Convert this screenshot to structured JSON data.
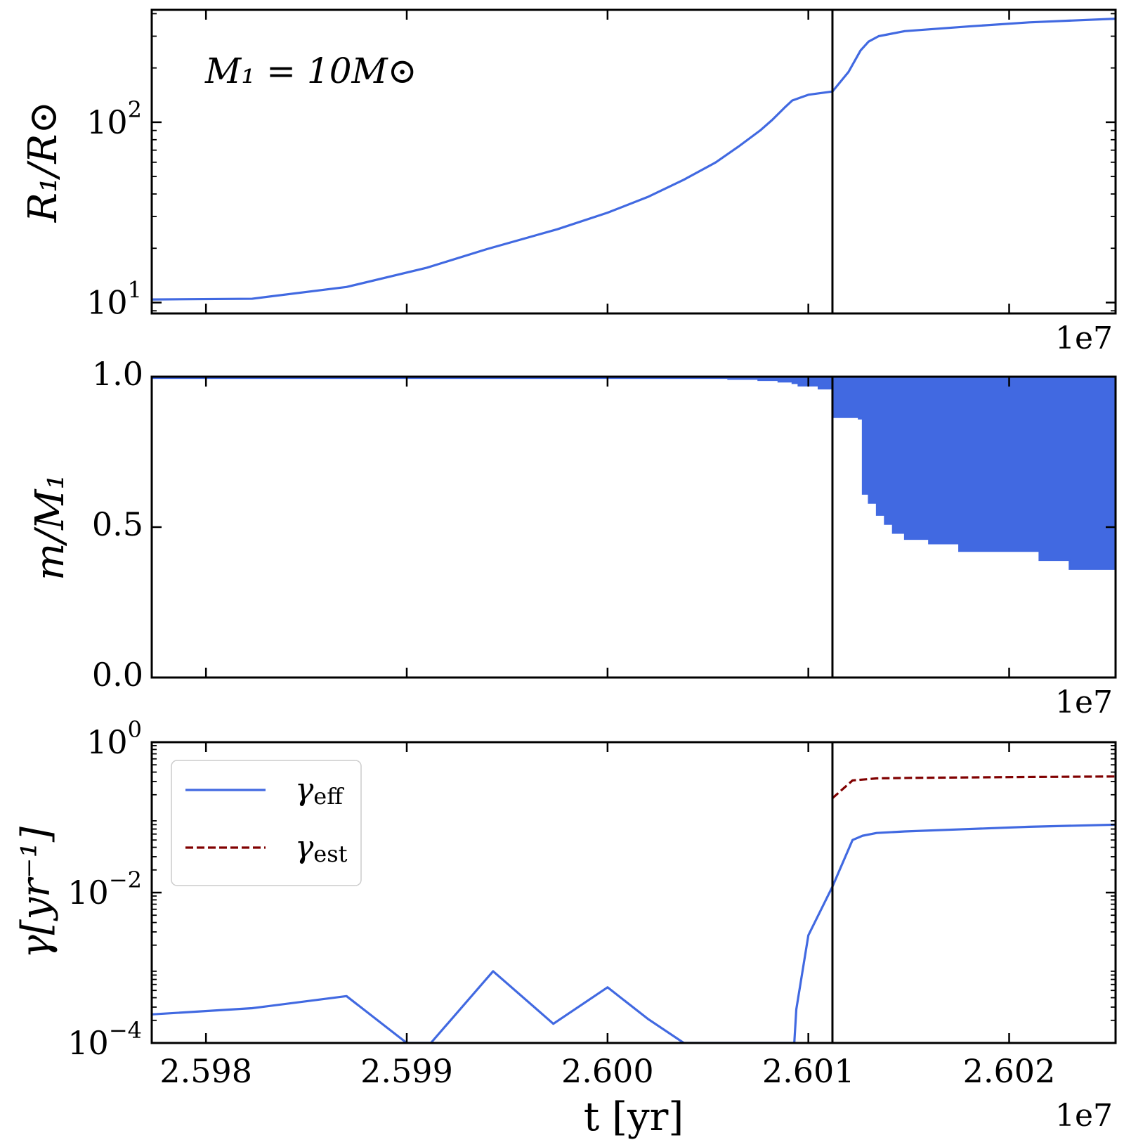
{
  "chart_data": [
    {
      "type": "line",
      "id": "radius",
      "ylabel": "R₁/R⊙",
      "yscale": "log",
      "ylim": [
        8.7,
        420
      ],
      "xlim": [
        25977300,
        26025300
      ],
      "annotation": "M₁ = 10M⊙",
      "offset_label": "1e7",
      "xticks": [
        25980000,
        25990000,
        26000000,
        26010000,
        26020000
      ],
      "yticks": [
        {
          "value": 10,
          "base": "10",
          "exp": "1"
        },
        {
          "value": 100,
          "base": "10",
          "exp": "2"
        }
      ],
      "vline": 26011200,
      "series": [
        {
          "color": "#4169e1",
          "style": "solid",
          "x": [
            25977300,
            25982300,
            25987000,
            25991000,
            25994000,
            25997500,
            26000000,
            26002000,
            26003800,
            26005400,
            26006500,
            26007600,
            26008200,
            26008800,
            26009200,
            26010000,
            26011200,
            26012000,
            26012600,
            26013000,
            26013500,
            26014800,
            26018000,
            26021000,
            26025300
          ],
          "y": [
            10.4,
            10.5,
            12.2,
            15.6,
            19.8,
            25.5,
            31.5,
            38.5,
            48,
            60,
            73,
            90,
            103,
            120,
            132,
            142,
            148,
            190,
            250,
            280,
            300,
            320,
            340,
            358,
            375
          ]
        }
      ]
    },
    {
      "type": "area",
      "id": "mass",
      "ylabel": "m/M₁",
      "ylim": [
        0.0,
        1.0
      ],
      "xlim": [
        25977300,
        26025300
      ],
      "offset_label": "1e7",
      "xticks": [
        25980000,
        25990000,
        26000000,
        26010000,
        26020000
      ],
      "yticks": [
        {
          "value": 0.0,
          "label": "0.0"
        },
        {
          "value": 0.5,
          "label": "0.5"
        },
        {
          "value": 1.0,
          "label": "1.0"
        }
      ],
      "vline": 26011200,
      "series": [
        {
          "color": "#4169e1",
          "fill_upper": 1.0,
          "x": [
            25977300,
            26006000,
            26007500,
            26008500,
            26009200,
            26009500,
            26010500,
            26011200,
            26011500,
            26012500,
            26012700,
            26013000,
            26013400,
            26013800,
            26014200,
            26014800,
            26016000,
            26017500,
            26019500,
            26021500,
            26022300,
            26023000,
            26025300
          ],
          "lower": [
            0.995,
            0.992,
            0.988,
            0.983,
            0.978,
            0.97,
            0.96,
            0.865,
            0.865,
            0.86,
            0.61,
            0.58,
            0.54,
            0.51,
            0.48,
            0.46,
            0.445,
            0.42,
            0.42,
            0.39,
            0.39,
            0.36,
            0.36
          ]
        }
      ]
    },
    {
      "type": "line",
      "id": "gamma",
      "ylabel": "γ[yr⁻¹]",
      "yscale": "log",
      "ylim": [
        0.0001,
        1.0
      ],
      "xlim": [
        25977300,
        26025300
      ],
      "xlabel": "t [yr]",
      "offset_label": "1e7",
      "xticks": [
        25980000,
        25990000,
        26000000,
        26010000,
        26020000
      ],
      "xticklabels": [
        "2.598",
        "2.599",
        "2.600",
        "2.601",
        "2.602"
      ],
      "yticks": [
        {
          "value": 0.0001,
          "base": "10",
          "exp": "−4"
        },
        {
          "value": 0.01,
          "base": "10",
          "exp": "−2"
        },
        {
          "value": 1.0,
          "base": "10",
          "exp": "0"
        }
      ],
      "vline": 26011200,
      "legend_position": "upper left",
      "series": [
        {
          "name": "γeff",
          "legend_base": "γ",
          "legend_sub": "eff",
          "color": "#4169e1",
          "style": "solid",
          "x": [
            25977300,
            25982300,
            25987000,
            25990000,
            25991200,
            25994300,
            25997300,
            26000000,
            26002000,
            26003800,
            26009300,
            26009400,
            26010000,
            26011200,
            26012200,
            26012700,
            26013400,
            26014800,
            26018000,
            26021000,
            26025300
          ],
          "y": [
            0.00024,
            0.00029,
            0.00042,
            0.0001,
            0.0001,
            0.0009,
            0.00018,
            0.00055,
            0.00021,
            0.0001,
            0.0001,
            0.00028,
            0.0027,
            0.012,
            0.05,
            0.057,
            0.062,
            0.065,
            0.07,
            0.075,
            0.08
          ]
        },
        {
          "name": "γest",
          "legend_base": "γ",
          "legend_sub": "est",
          "color": "#800000",
          "style": "dashed",
          "x": [
            26011200,
            26012200,
            26013400,
            26015000,
            26018000,
            26021000,
            26025300
          ],
          "y": [
            0.18,
            0.31,
            0.33,
            0.335,
            0.34,
            0.345,
            0.35
          ]
        }
      ]
    }
  ]
}
